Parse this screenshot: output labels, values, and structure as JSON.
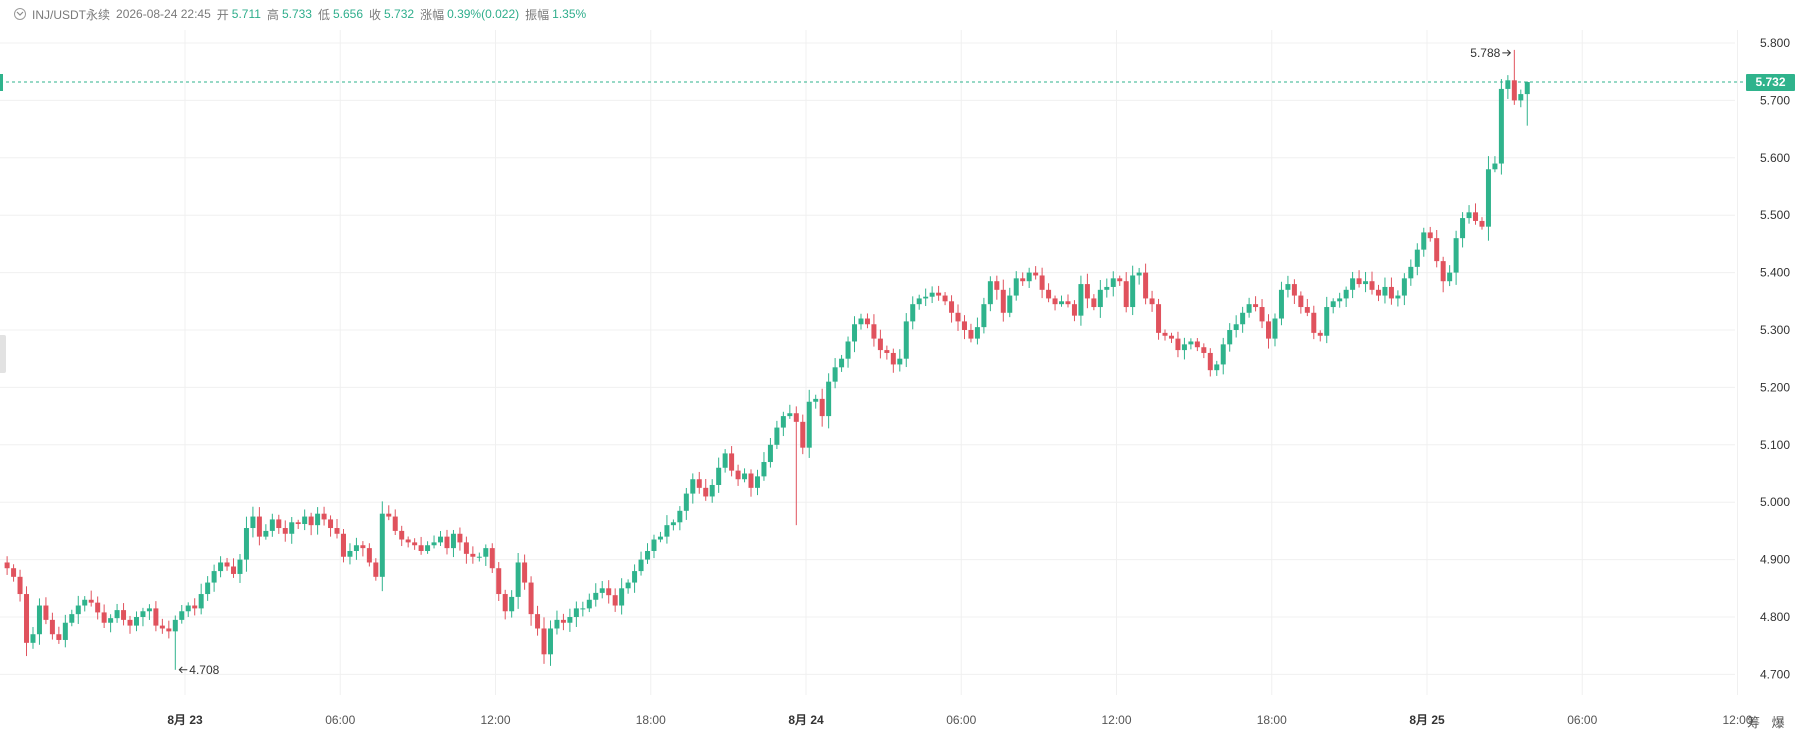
{
  "header": {
    "symbol": "INJ/USDT永续",
    "datetime": "2026-08-24 22:45",
    "open_label": "开",
    "open_value": "5.711",
    "high_label": "高",
    "high_value": "5.733",
    "low_label": "低",
    "low_value": "5.656",
    "close_label": "收",
    "close_value": "5.732",
    "change_label": "涨幅",
    "change_value": "0.39%(0.022)",
    "amplitude_label": "振幅",
    "amplitude_value": "1.35%"
  },
  "corner_tools": {
    "tool1": "筹",
    "tool2": "爆"
  },
  "colors": {
    "up": "#2fb38c",
    "down": "#e0525d",
    "grid": "#f0f0f0",
    "last_line": "#2fb38c"
  },
  "chart_data": {
    "type": "candlestick",
    "title": "",
    "xlabel": "",
    "ylabel": "",
    "ylim": [
      4.67,
      5.83
    ],
    "y_ticks": [
      "4.700",
      "4.800",
      "4.900",
      "5.000",
      "5.100",
      "5.200",
      "5.300",
      "5.400",
      "5.500",
      "5.600",
      "5.700",
      "5.800"
    ],
    "x_ticks": [
      {
        "label": "8月 23",
        "day": 1,
        "hour": 0,
        "bold": true
      },
      {
        "label": "06:00",
        "day": 1,
        "hour": 6,
        "bold": false
      },
      {
        "label": "12:00",
        "day": 1,
        "hour": 12,
        "bold": false
      },
      {
        "label": "18:00",
        "day": 1,
        "hour": 18,
        "bold": false
      },
      {
        "label": "8月 24",
        "day": 2,
        "hour": 0,
        "bold": true
      },
      {
        "label": "06:00",
        "day": 2,
        "hour": 6,
        "bold": false
      },
      {
        "label": "12:00",
        "day": 2,
        "hour": 12,
        "bold": false
      },
      {
        "label": "18:00",
        "day": 2,
        "hour": 18,
        "bold": false
      },
      {
        "label": "8月 25",
        "day": 3,
        "hour": 0,
        "bold": true
      },
      {
        "label": "06:00",
        "day": 3,
        "hour": 6,
        "bold": false
      },
      {
        "label": "12:00",
        "day": 3,
        "hour": 12,
        "bold": false
      }
    ],
    "interval_minutes": 15,
    "first_candle": "2026-08-22 17:00",
    "last_price": "5.732",
    "high_label": "5.788",
    "low_label": "4.708",
    "series": [
      {
        "name": "",
        "closes": [
          4.885,
          4.87,
          4.84,
          4.755,
          4.77,
          4.82,
          4.795,
          4.77,
          4.76,
          4.79,
          4.805,
          4.82,
          4.83,
          4.825,
          4.808,
          4.79,
          4.798,
          4.812,
          4.795,
          4.785,
          4.8,
          4.81,
          4.815,
          4.785,
          4.78,
          4.775,
          4.795,
          4.81,
          4.82,
          4.815,
          4.84,
          4.86,
          4.88,
          4.895,
          4.888,
          4.875,
          4.9,
          4.955,
          4.975,
          4.94,
          4.95,
          4.97,
          4.955,
          4.945,
          4.965,
          4.962,
          4.975,
          4.96,
          4.98,
          4.97,
          4.955,
          4.945,
          4.905,
          4.915,
          4.925,
          4.92,
          4.895,
          4.87,
          4.98,
          4.975,
          4.95,
          4.935,
          4.93,
          4.925,
          4.915,
          4.925,
          4.93,
          4.94,
          4.92,
          4.945,
          4.93,
          4.91,
          4.905,
          4.905,
          4.92,
          4.885,
          4.84,
          4.81,
          4.835,
          4.895,
          4.86,
          4.805,
          4.78,
          4.735,
          4.78,
          4.795,
          4.79,
          4.8,
          4.815,
          4.815,
          4.83,
          4.842,
          4.85,
          4.838,
          4.82,
          4.85,
          4.86,
          4.88,
          4.9,
          4.915,
          4.935,
          4.94,
          4.96,
          4.965,
          4.985,
          5.015,
          5.04,
          5.025,
          5.01,
          5.03,
          5.06,
          5.085,
          5.055,
          5.04,
          5.05,
          5.025,
          5.045,
          5.07,
          5.1,
          5.13,
          5.15,
          5.155,
          5.14,
          5.095,
          5.175,
          5.18,
          5.15,
          5.21,
          5.235,
          5.25,
          5.28,
          5.31,
          5.32,
          5.31,
          5.285,
          5.265,
          5.26,
          5.24,
          5.25,
          5.315,
          5.345,
          5.355,
          5.358,
          5.365,
          5.36,
          5.35,
          5.33,
          5.315,
          5.3,
          5.285,
          5.305,
          5.345,
          5.385,
          5.37,
          5.33,
          5.36,
          5.39,
          5.385,
          5.4,
          5.395,
          5.37,
          5.355,
          5.345,
          5.35,
          5.345,
          5.325,
          5.38,
          5.355,
          5.34,
          5.37,
          5.375,
          5.39,
          5.385,
          5.34,
          5.395,
          5.4,
          5.355,
          5.345,
          5.295,
          5.29,
          5.285,
          5.265,
          5.275,
          5.28,
          5.27,
          5.26,
          5.23,
          5.24,
          5.275,
          5.3,
          5.31,
          5.33,
          5.345,
          5.34,
          5.315,
          5.285,
          5.32,
          5.37,
          5.38,
          5.36,
          5.34,
          5.33,
          5.295,
          5.29,
          5.34,
          5.35,
          5.355,
          5.37,
          5.39,
          5.38,
          5.385,
          5.37,
          5.36,
          5.375,
          5.355,
          5.36,
          5.39,
          5.41,
          5.44,
          5.47,
          5.46,
          5.42,
          5.385,
          5.4,
          5.46,
          5.495,
          5.505,
          5.49,
          5.48,
          5.58,
          5.59,
          5.72,
          5.735,
          5.7,
          5.711,
          5.732
        ]
      }
    ],
    "notes": "closes listed for 15-minute candles; opens equal previous close; highs/lows drawn as wicks"
  }
}
